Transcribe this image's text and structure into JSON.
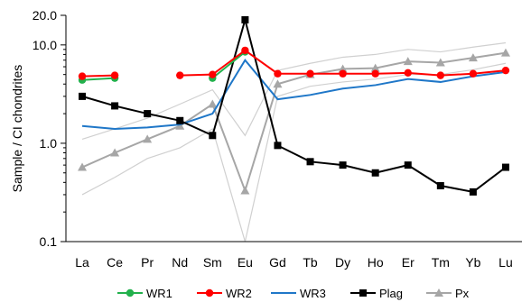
{
  "chart_data": {
    "type": "line",
    "ylabel": "Sample / CI chondrites",
    "yscale": "log",
    "ylim": [
      0.1,
      20
    ],
    "yticks": [
      {
        "value": 0.1,
        "label": "0.1"
      },
      {
        "value": 1,
        "label": "1.0"
      },
      {
        "value": 10,
        "label": "10.0"
      },
      {
        "value": 20,
        "label": "20.0"
      }
    ],
    "categories": [
      "La",
      "Ce",
      "Pr",
      "Nd",
      "Sm",
      "Eu",
      "Gd",
      "Tb",
      "Dy",
      "Ho",
      "Er",
      "Tm",
      "Yb",
      "Lu"
    ],
    "legend_position": "bottom",
    "grid": false,
    "series": [
      {
        "name": "WR1",
        "color": "#22b14c",
        "marker": "circle",
        "values": [
          4.4,
          4.6,
          null,
          null,
          4.6,
          8.5,
          null,
          null,
          null,
          null,
          null,
          null,
          null,
          null
        ]
      },
      {
        "name": "WR2",
        "color": "#ff0000",
        "marker": "circle",
        "values": [
          4.8,
          4.9,
          null,
          4.9,
          5.0,
          8.8,
          5.1,
          5.1,
          5.1,
          5.1,
          5.2,
          4.9,
          5.1,
          5.5
        ]
      },
      {
        "name": "WR3",
        "color": "#1f77c8",
        "marker": "none",
        "values": [
          1.5,
          1.4,
          1.45,
          1.55,
          2.0,
          7.0,
          2.8,
          3.1,
          3.6,
          3.9,
          4.5,
          4.2,
          4.8,
          5.3
        ]
      },
      {
        "name": "Plag",
        "color": "#000000",
        "marker": "square",
        "values": [
          3.0,
          2.4,
          2.0,
          1.7,
          1.2,
          18.0,
          0.95,
          0.65,
          0.6,
          0.5,
          0.6,
          0.37,
          0.32,
          0.57
        ]
      },
      {
        "name": "Px",
        "color": "#a6a6a6",
        "marker": "triangle",
        "values": [
          0.57,
          0.8,
          1.1,
          1.5,
          2.5,
          0.33,
          4.0,
          5.0,
          5.7,
          5.8,
          6.8,
          6.6,
          7.4,
          8.3
        ]
      }
    ],
    "envelope": {
      "color": "#d0d0d0",
      "lines": [
        [
          0.3,
          0.45,
          0.7,
          0.9,
          1.4,
          0.1,
          3.0,
          3.8,
          4.2,
          4.5,
          5.0,
          5.0,
          5.6,
          6.5
        ],
        [
          1.1,
          1.4,
          1.8,
          2.5,
          3.5,
          1.2,
          5.5,
          6.5,
          7.5,
          8.0,
          9.0,
          8.5,
          9.5,
          10.5
        ]
      ]
    }
  }
}
